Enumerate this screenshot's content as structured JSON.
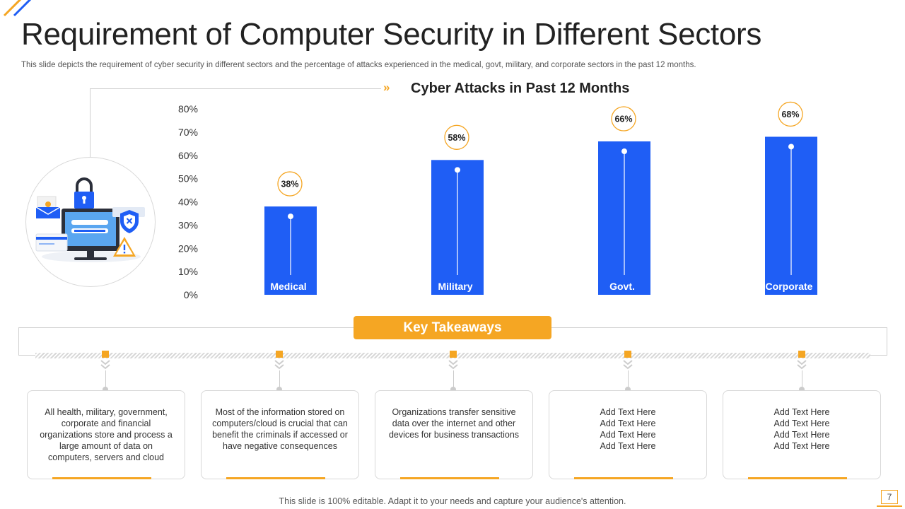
{
  "title": "Requirement of Computer Security in Different Sectors",
  "subtitle": "This slide depicts the requirement of cyber security in different sectors and the percentage of attacks experienced in the medical, govt, military, and corporate sectors in the past 12 months.",
  "colors": {
    "bar": "#1f5ef5",
    "accent": "#f5a623",
    "gray": "#cccccc"
  },
  "chart_data": {
    "type": "bar",
    "title": "Cyber Attacks in Past 12 Months",
    "categories": [
      "Medical",
      "Military",
      "Govt.",
      "Corporate"
    ],
    "values": [
      38,
      58,
      66,
      68
    ],
    "data_labels": [
      "38%",
      "58%",
      "66%",
      "68%"
    ],
    "yticks": [
      "0%",
      "10%",
      "20%",
      "30%",
      "40%",
      "50%",
      "60%",
      "70%",
      "80%"
    ],
    "ylim": [
      0,
      80
    ],
    "xlabel": "",
    "ylabel": "",
    "grid": false,
    "legend": "none"
  },
  "takeaways": {
    "header": "Key Takeaways",
    "items": [
      "All health, military, government,\ncorporate and financial\norganizations store and process a\nlarge amount of data on\ncomputers, servers and cloud",
      "Most of the information stored on\ncomputers/cloud is crucial that can\nbenefit the criminals if accessed or\nhave negative consequences",
      "Organizations transfer sensitive\ndata over the internet and other\ndevices for business transactions",
      "Add Text Here\nAdd Text Here\nAdd Text Here\nAdd Text Here",
      "Add Text Here\nAdd Text Here\nAdd Text Here\nAdd Text Here"
    ]
  },
  "footer": "This slide is 100% editable. Adapt it to your needs and capture your audience's attention.",
  "page_number": "7",
  "icons": [
    "security-illustration-icon",
    "padlock-icon",
    "shield-x-icon",
    "warning-icon",
    "monitor-icon",
    "email-icon",
    "chevrons-right-icon",
    "chevron-down-icon"
  ]
}
